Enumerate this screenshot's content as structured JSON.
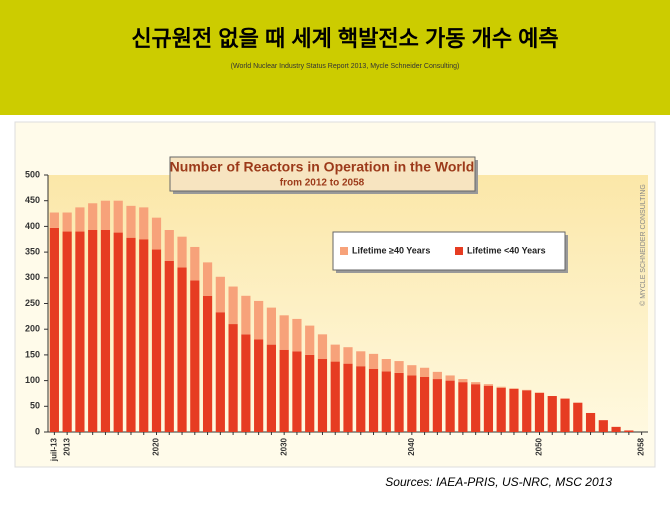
{
  "header": {
    "title": "신규원전 없을 때 세계 핵발전소 가동 개수 예측",
    "subtitle": "(World Nuclear Industry Status Report 2013, Mycle Schneider Consulting)"
  },
  "chart_data": {
    "type": "bar",
    "stacked": true,
    "title": "Number of Reactors in Operation in the World",
    "subtitle": "from 2012 to 2058",
    "credit": "© MYCLE SCHNEIDER CONSULTING",
    "categories": [
      "juil-13",
      "2013",
      null,
      null,
      null,
      null,
      null,
      null,
      "2020",
      null,
      null,
      null,
      null,
      null,
      null,
      null,
      null,
      null,
      "2030",
      null,
      null,
      null,
      null,
      null,
      null,
      null,
      null,
      null,
      "2040",
      null,
      null,
      null,
      null,
      null,
      null,
      null,
      null,
      null,
      "2050",
      null,
      null,
      null,
      null,
      null,
      null,
      null,
      "2058"
    ],
    "series": [
      {
        "name": "Lifetime <40 Years",
        "color": "#e63c22",
        "values": [
          397,
          390,
          390,
          393,
          393,
          388,
          378,
          375,
          355,
          333,
          320,
          295,
          265,
          233,
          210,
          190,
          180,
          170,
          160,
          157,
          150,
          142,
          137,
          133,
          128,
          123,
          118,
          115,
          110,
          107,
          103,
          100,
          97,
          93,
          90,
          86,
          84,
          81,
          76,
          70,
          65,
          57,
          37,
          23,
          10,
          3,
          0
        ]
      },
      {
        "name": "Lifetime ≥40 Years",
        "color": "#f7a27a",
        "values": [
          30,
          37,
          47,
          52,
          57,
          62,
          62,
          62,
          62,
          60,
          60,
          65,
          65,
          69,
          73,
          75,
          75,
          72,
          67,
          63,
          57,
          48,
          33,
          32,
          29,
          29,
          24,
          23,
          20,
          18,
          14,
          10,
          6,
          4,
          3,
          2,
          1,
          1,
          1,
          0,
          0,
          0,
          0,
          0,
          0,
          0,
          0
        ]
      }
    ],
    "legend_order": [
      1,
      0
    ],
    "ylim": [
      0,
      500
    ],
    "yticks": [
      0,
      50,
      100,
      150,
      200,
      250,
      300,
      350,
      400,
      450,
      500
    ],
    "grid": false
  },
  "sources": "Sources: IAEA-PRIS, US-NRC, MSC 2013"
}
